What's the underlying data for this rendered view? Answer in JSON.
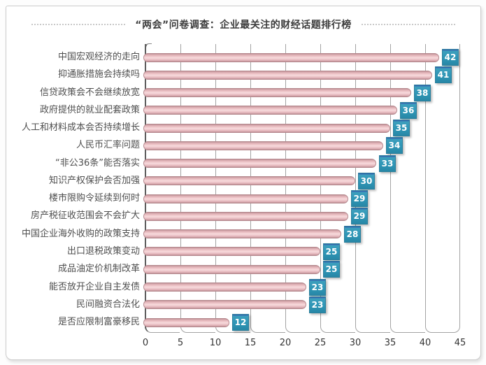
{
  "title": "“两会”问卷调查：企业最关注的财经话题排行榜",
  "chart_data": {
    "type": "bar",
    "orientation": "horizontal",
    "title": "“两会”问卷调查：企业最关注的财经话题排行榜",
    "categories": [
      "中国宏观经济的走向",
      "抑通胀措施会持续吗",
      "信贷政策会不会继续放宽",
      "政府提供的就业配套政策",
      "人工和材料成本会否持续增长",
      "人民币汇率问题",
      "“非公36条”能否落实",
      "知识产权保护会否加强",
      "楼市限购令延续到何时",
      "房产税征收范围会不会扩大",
      "中国企业海外收购的政策支持",
      "出口退税政策变动",
      "成品油定价机制改革",
      "能否放开企业自主发债",
      "民间融资合法化",
      "是否应限制富豪移民"
    ],
    "values": [
      42,
      41,
      38,
      36,
      35,
      34,
      33,
      30,
      29,
      29,
      28,
      25,
      25,
      23,
      23,
      12
    ],
    "xlabel": "",
    "ylabel": "",
    "xlim": [
      0,
      45
    ],
    "x_ticks": [
      0,
      5,
      10,
      15,
      20,
      25,
      30,
      35,
      40,
      45
    ],
    "grid": true,
    "legend": false,
    "bar_color": "#f0c9cd",
    "bar_edge_color": "#b5898e",
    "value_badge_color": "#2e96b6",
    "value_badge_text_color": "#ffffff",
    "gridline_color": "#a3a3a3",
    "axis_color": "#5e5e5e"
  }
}
